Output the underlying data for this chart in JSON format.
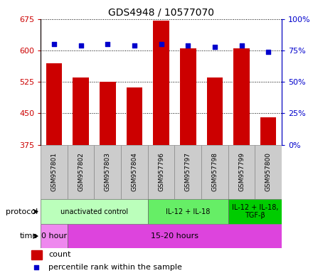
{
  "title": "GDS4948 / 10577070",
  "samples": [
    "GSM957801",
    "GSM957802",
    "GSM957803",
    "GSM957804",
    "GSM957796",
    "GSM957797",
    "GSM957798",
    "GSM957799",
    "GSM957800"
  ],
  "counts": [
    570,
    535,
    525,
    512,
    672,
    605,
    535,
    605,
    440
  ],
  "percentile_ranks": [
    80,
    79,
    80,
    79,
    80,
    79,
    78,
    79,
    74
  ],
  "ylim_left": [
    375,
    675
  ],
  "ylim_right": [
    0,
    100
  ],
  "yticks_left": [
    375,
    450,
    525,
    600,
    675
  ],
  "yticks_right": [
    0,
    25,
    50,
    75,
    100
  ],
  "bar_color": "#cc0000",
  "dot_color": "#0000cc",
  "left_tick_color": "#cc0000",
  "right_tick_color": "#0000cc",
  "protocol_groups": [
    {
      "label": "unactivated control",
      "start": 0,
      "end": 4,
      "color": "#bbffbb"
    },
    {
      "label": "IL-12 + IL-18",
      "start": 4,
      "end": 7,
      "color": "#66ee66"
    },
    {
      "label": "IL-12 + IL-18,\nTGF-β",
      "start": 7,
      "end": 9,
      "color": "#00cc00"
    }
  ],
  "time_groups": [
    {
      "label": "0 hour",
      "start": 0,
      "end": 1,
      "color": "#ee88ee"
    },
    {
      "label": "15-20 hours",
      "start": 1,
      "end": 9,
      "color": "#dd44dd"
    }
  ],
  "legend_count_label": "count",
  "legend_pct_label": "percentile rank within the sample"
}
